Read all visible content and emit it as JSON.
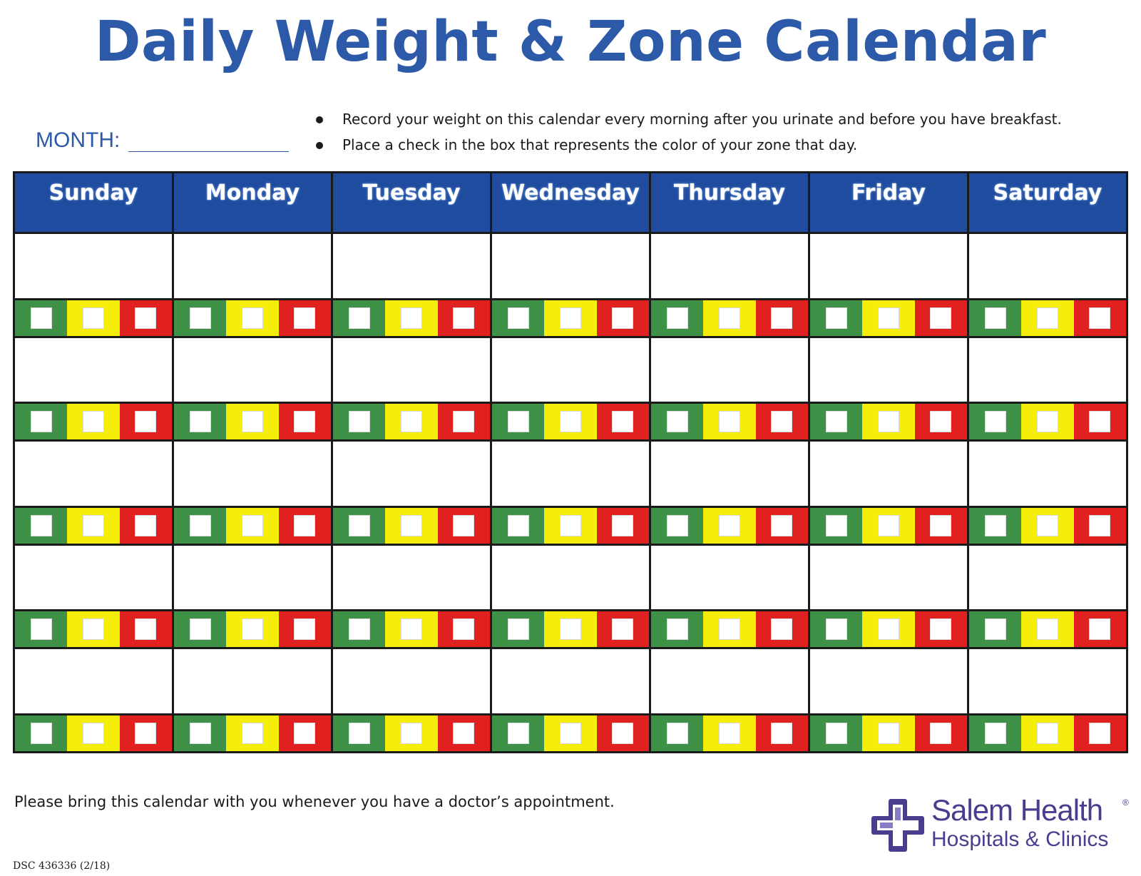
{
  "title": "Daily Weight & Zone Calendar",
  "month_label": "MONTH:",
  "instructions": [
    "Record your weight on this calendar every morning after you urinate and before you have breakfast.",
    "Place a check in the box that represents the color of your zone that day."
  ],
  "calendar": {
    "days": [
      "Sunday",
      "Monday",
      "Tuesday",
      "Wednesday",
      "Thursday",
      "Friday",
      "Saturday"
    ],
    "weeks": 5,
    "zones": [
      {
        "name": "green",
        "color": "#3e9146"
      },
      {
        "name": "yellow",
        "color": "#f4ee0a"
      },
      {
        "name": "red",
        "color": "#e12020"
      }
    ],
    "header_color": "#1f4c9e"
  },
  "footer_note": "Please bring this calendar with you whenever you have a doctor’s appointment.",
  "doc_code": "DSC 436336 (2/18)",
  "logo": {
    "name": "Salem Health",
    "registered": "®",
    "subtitle": "Hospitals & Clinics",
    "icon": "cross-icon",
    "color": "#4c3c8e"
  }
}
